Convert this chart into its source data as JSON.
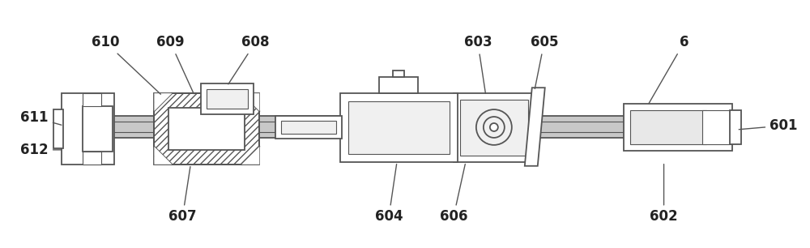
{
  "bg_color": "#ffffff",
  "line_color": "#555555",
  "lw": 1.3,
  "fig_width": 10.0,
  "fig_height": 3.06,
  "shaft_color": "#cccccc",
  "hatch_color": "#666666"
}
